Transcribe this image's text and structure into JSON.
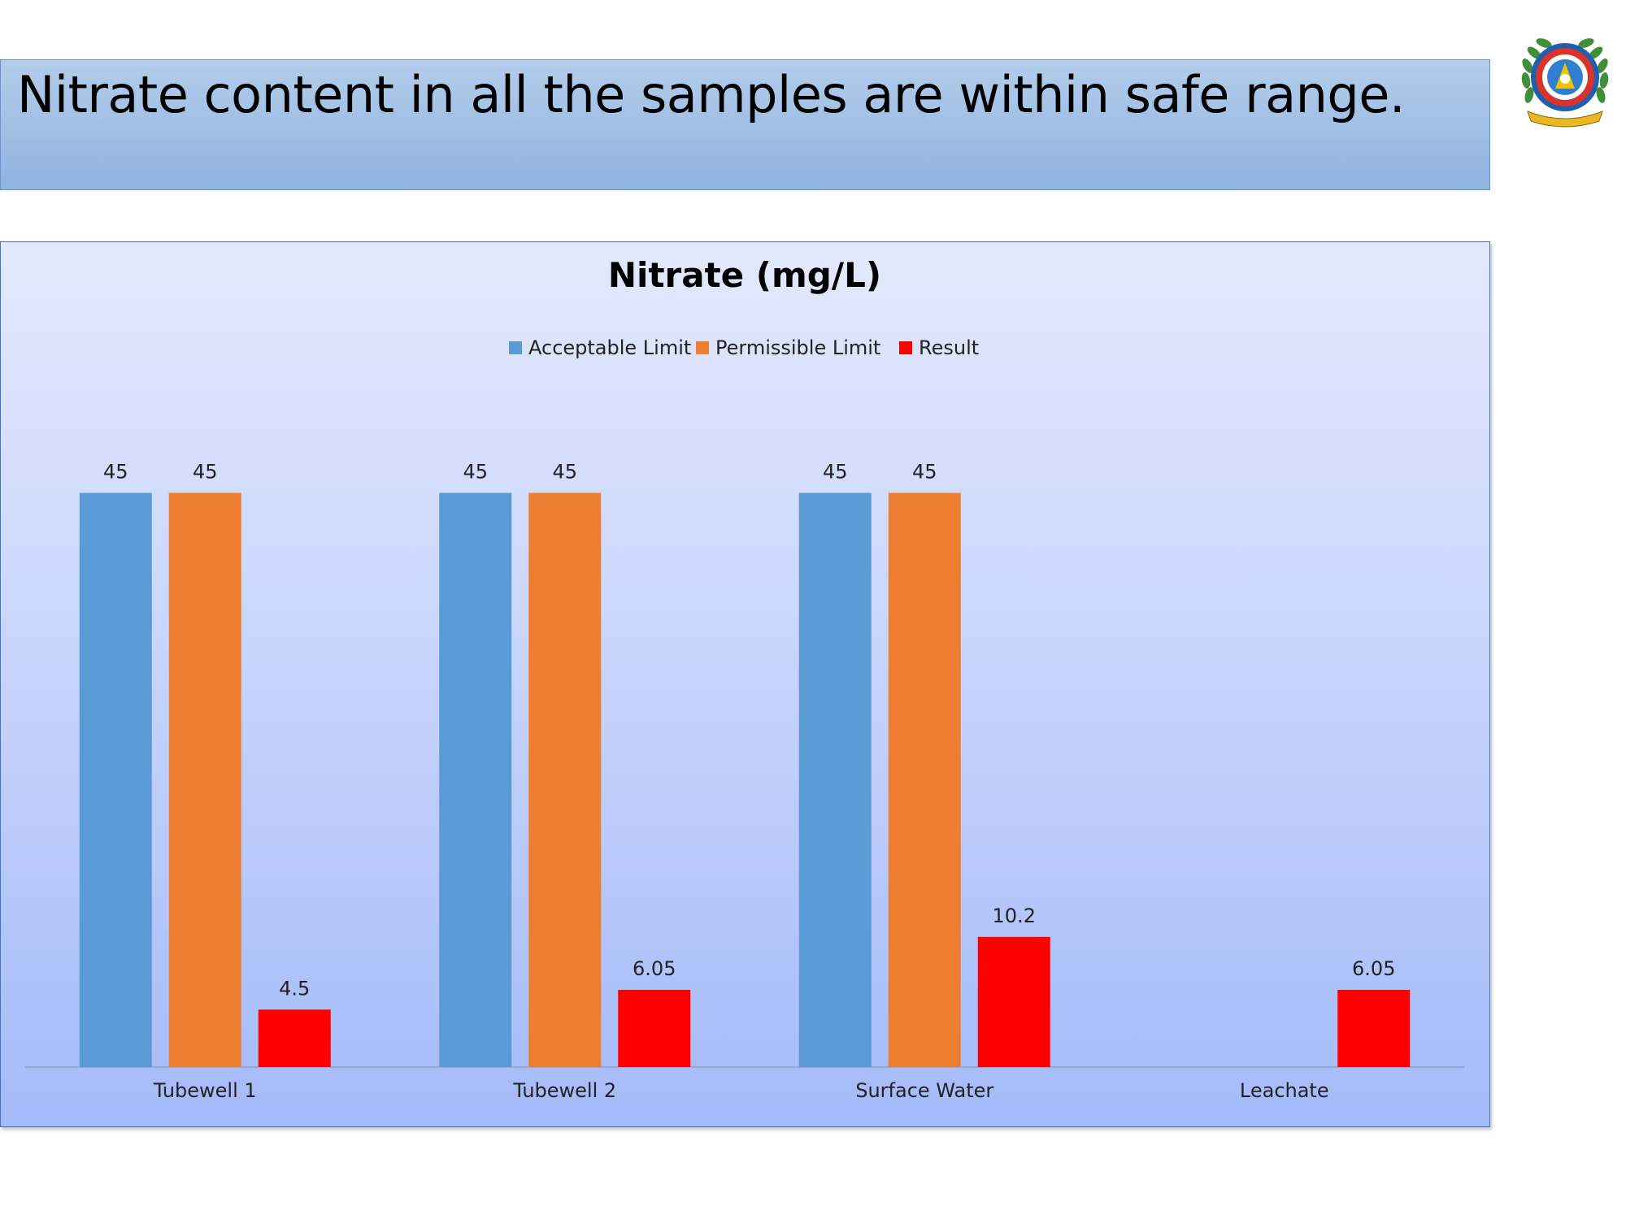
{
  "slide": {
    "heading": "Nitrate content in all the samples are within safe range."
  },
  "logo": {
    "icon": "institute-emblem-icon"
  },
  "chart_data": {
    "type": "bar",
    "title": "Nitrate (mg/L)",
    "xlabel": "",
    "ylabel": "",
    "categories": [
      "Tubewell 1",
      "Tubewell 2",
      "Surface Water",
      "Leachate"
    ],
    "series": [
      {
        "name": "Acceptable Limit",
        "color": "#5b9bd5",
        "values": [
          45,
          45,
          45,
          null
        ]
      },
      {
        "name": "Permissible Limit",
        "color": "#ed7d31",
        "values": [
          45,
          45,
          45,
          null
        ]
      },
      {
        "name": "Result",
        "color": "#ff0000",
        "values": [
          4.5,
          6.05,
          10.2,
          6.05
        ]
      }
    ],
    "data_labels": [
      [
        "45",
        "45",
        "45",
        null
      ],
      [
        "45",
        "45",
        "45",
        null
      ],
      [
        "4.5",
        "6.05",
        "10.2",
        "6.05"
      ]
    ],
    "ylim": [
      0,
      50
    ],
    "grid": false,
    "legend_position": "top-center"
  }
}
